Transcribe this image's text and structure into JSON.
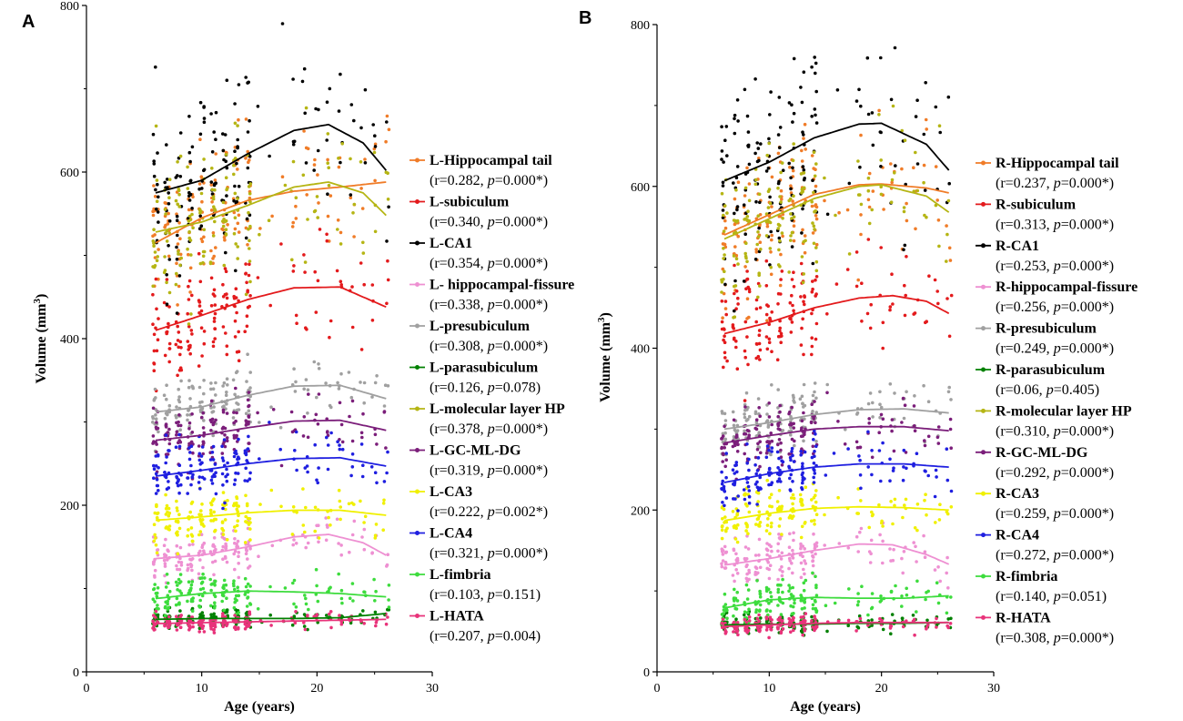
{
  "chart_data": [
    {
      "type": "scatter",
      "panel": "A",
      "xlabel": "Age (years)",
      "ylabel": "Volume (mm",
      "ylabel_sup": "3",
      "ylabel_end": ")",
      "xlim": [
        0,
        30
      ],
      "ylim": [
        0,
        800
      ],
      "xticks": [
        0,
        10,
        20,
        30
      ],
      "yticks": [
        0,
        200,
        400,
        600,
        800
      ],
      "x_range": [
        6,
        26
      ],
      "legend_position": "right",
      "series": [
        {
          "name": "L-Hippocampal tail",
          "color": "#f07c28",
          "stat_pre": "(r=0.282, ",
          "p_label": "p",
          "stat_post": "=0.000*)",
          "fit": [
            [
              6,
              515
            ],
            [
              10,
              545
            ],
            [
              14,
              566
            ],
            [
              18,
              577
            ],
            [
              22,
              582
            ],
            [
              26,
              588
            ]
          ],
          "spread": 75
        },
        {
          "name": "L-subiculum",
          "color": "#e31a1c",
          "stat_pre": "(r=0.340, ",
          "p_label": "p",
          "stat_post": "=0.000*)",
          "fit": [
            [
              6,
              410
            ],
            [
              10,
              428
            ],
            [
              14,
              447
            ],
            [
              18,
              461
            ],
            [
              22,
              462
            ],
            [
              26,
              438
            ]
          ],
          "spread": 55
        },
        {
          "name": "L-CA1",
          "color": "#000000",
          "stat_pre": "(r=0.354, ",
          "p_label": "p",
          "stat_post": "=0.000*)",
          "fit": [
            [
              6,
              575
            ],
            [
              10,
              590
            ],
            [
              14,
              622
            ],
            [
              18,
              650
            ],
            [
              21,
              657
            ],
            [
              24,
              635
            ],
            [
              26,
              602
            ]
          ],
          "spread": 95
        },
        {
          "name": "L- hippocampal-fissure",
          "color": "#ee90d2",
          "stat_pre": "(r=0.338, ",
          "p_label": "p",
          "stat_post": "=0.000*)",
          "fit": [
            [
              6,
              136
            ],
            [
              10,
              140
            ],
            [
              14,
              150
            ],
            [
              18,
              162
            ],
            [
              21,
              165
            ],
            [
              24,
              155
            ],
            [
              26,
              140
            ]
          ],
          "spread": 22
        },
        {
          "name": "L-presubiculum",
          "color": "#a0a0a0",
          "stat_pre": "(r=0.308, ",
          "p_label": "p",
          "stat_post": "=0.000*)",
          "fit": [
            [
              6,
              312
            ],
            [
              10,
              318
            ],
            [
              14,
              332
            ],
            [
              18,
              343
            ],
            [
              22,
              344
            ],
            [
              26,
              328
            ]
          ],
          "spread": 30
        },
        {
          "name": "L-parasubiculum",
          "color": "#008000",
          "stat_pre": "(r=0.126, ",
          "p_label": "p",
          "stat_post": "=0.078)",
          "fit": [
            [
              6,
              63
            ],
            [
              10,
              64
            ],
            [
              14,
              64
            ],
            [
              18,
              64
            ],
            [
              22,
              65
            ],
            [
              26,
              70
            ]
          ],
          "spread": 10
        },
        {
          "name": "L-molecular layer HP",
          "color": "#b5b514",
          "stat_pre": "(r=0.378, ",
          "p_label": "p",
          "stat_post": "=0.000*)",
          "fit": [
            [
              6,
              528
            ],
            [
              10,
              540
            ],
            [
              14,
              560
            ],
            [
              18,
              582
            ],
            [
              21,
              588
            ],
            [
              24,
              575
            ],
            [
              26,
              548
            ]
          ],
          "spread": 75
        },
        {
          "name": "L-GC-ML-DG",
          "color": "#7b1e7a",
          "stat_pre": "(r=0.319, ",
          "p_label": "p",
          "stat_post": "=0.000*)",
          "fit": [
            [
              6,
              278
            ],
            [
              10,
              284
            ],
            [
              14,
              293
            ],
            [
              18,
              301
            ],
            [
              22,
              302
            ],
            [
              26,
              290
            ]
          ],
          "spread": 30
        },
        {
          "name": "L-CA3",
          "color": "#f0f000",
          "stat_pre": "(r=0.222, ",
          "p_label": "p",
          "stat_post": "=0.002*)",
          "fit": [
            [
              6,
              182
            ],
            [
              10,
              186
            ],
            [
              14,
              191
            ],
            [
              18,
              194
            ],
            [
              22,
              194
            ],
            [
              26,
              188
            ]
          ],
          "spread": 25
        },
        {
          "name": "L-CA4",
          "color": "#1f1fe0",
          "stat_pre": "(r=0.321, ",
          "p_label": "p",
          "stat_post": "=0.000*)",
          "fit": [
            [
              6,
              235
            ],
            [
              10,
              242
            ],
            [
              14,
              250
            ],
            [
              18,
              256
            ],
            [
              22,
              257
            ],
            [
              26,
              247
            ]
          ],
          "spread": 28
        },
        {
          "name": "L-fimbria",
          "color": "#3ddc3d",
          "stat_pre": "(r=0.103, ",
          "p_label": "p",
          "stat_post": "=0.151)",
          "fit": [
            [
              6,
              88
            ],
            [
              10,
              94
            ],
            [
              14,
              97
            ],
            [
              18,
              96
            ],
            [
              22,
              94
            ],
            [
              26,
              90
            ]
          ],
          "spread": 20
        },
        {
          "name": "L-HATA",
          "color": "#e8337a",
          "stat_pre": "(r=0.207, ",
          "p_label": "p",
          "stat_post": "=0.004)",
          "fit": [
            [
              6,
              58
            ],
            [
              10,
              59
            ],
            [
              14,
              60
            ],
            [
              18,
              61
            ],
            [
              22,
              62
            ],
            [
              26,
              63
            ]
          ],
          "spread": 9
        }
      ]
    },
    {
      "type": "scatter",
      "panel": "B",
      "xlabel": "Age (years)",
      "ylabel": "Volume (mm",
      "ylabel_sup": "3",
      "ylabel_end": ")",
      "xlim": [
        0,
        30
      ],
      "ylim": [
        0,
        800
      ],
      "xticks": [
        0,
        10,
        20,
        30
      ],
      "yticks": [
        0,
        200,
        400,
        600,
        800
      ],
      "x_range": [
        6,
        26
      ],
      "legend_position": "right",
      "series": [
        {
          "name": "R-Hippocampal tail",
          "color": "#f07c28",
          "stat_pre": "(r=0.237, ",
          "p_label": "p",
          "stat_post": "=0.000*)",
          "fit": [
            [
              6,
              540
            ],
            [
              10,
              565
            ],
            [
              14,
              590
            ],
            [
              18,
              602
            ],
            [
              20,
              603
            ],
            [
              24,
              598
            ],
            [
              26,
              592
            ]
          ],
          "spread": 75
        },
        {
          "name": "R-subiculum",
          "color": "#e31a1c",
          "stat_pre": "(r=0.313, ",
          "p_label": "p",
          "stat_post": "=0.000*)",
          "fit": [
            [
              6,
              418
            ],
            [
              10,
              432
            ],
            [
              14,
              450
            ],
            [
              18,
              462
            ],
            [
              21,
              465
            ],
            [
              24,
              458
            ],
            [
              26,
              443
            ]
          ],
          "spread": 55
        },
        {
          "name": "R-CA1",
          "color": "#000000",
          "stat_pre": "(r=0.253, ",
          "p_label": "p",
          "stat_post": "=0.000*)",
          "fit": [
            [
              6,
              607
            ],
            [
              10,
              630
            ],
            [
              14,
              660
            ],
            [
              18,
              677
            ],
            [
              20,
              678
            ],
            [
              24,
              652
            ],
            [
              26,
              620
            ]
          ],
          "spread": 95
        },
        {
          "name": "R-hippocampal-fissure",
          "color": "#ee90d2",
          "stat_pre": "(r=0.256, ",
          "p_label": "p",
          "stat_post": "=0.000*)",
          "fit": [
            [
              6,
              132
            ],
            [
              10,
              140
            ],
            [
              14,
              150
            ],
            [
              18,
              158
            ],
            [
              21,
              157
            ],
            [
              24,
              145
            ],
            [
              26,
              133
            ]
          ],
          "spread": 22
        },
        {
          "name": "R-presubiculum",
          "color": "#a0a0a0",
          "stat_pre": "(r=0.249, ",
          "p_label": "p",
          "stat_post": "=0.000*)",
          "fit": [
            [
              6,
              300
            ],
            [
              10,
              308
            ],
            [
              14,
              318
            ],
            [
              18,
              324
            ],
            [
              22,
              325
            ],
            [
              26,
              320
            ]
          ],
          "spread": 30
        },
        {
          "name": "R-parasubiculum",
          "color": "#008000",
          "stat_pre": "(r=0.06, ",
          "p_label": "p",
          "stat_post": "=0.405)",
          "fit": [
            [
              6,
              58
            ],
            [
              10,
              59
            ],
            [
              14,
              59
            ],
            [
              18,
              60
            ],
            [
              22,
              60
            ],
            [
              26,
              61
            ]
          ],
          "spread": 10
        },
        {
          "name": "R-molecular layer HP",
          "color": "#b5b514",
          "stat_pre": "(r=0.310, ",
          "p_label": "p",
          "stat_post": "=0.000*)",
          "fit": [
            [
              6,
              535
            ],
            [
              10,
              560
            ],
            [
              14,
              585
            ],
            [
              18,
              600
            ],
            [
              20,
              602
            ],
            [
              24,
              588
            ],
            [
              26,
              568
            ]
          ],
          "spread": 75
        },
        {
          "name": "R-GC-ML-DG",
          "color": "#7b1e7a",
          "stat_pre": "(r=0.292, ",
          "p_label": "p",
          "stat_post": "=0.000*)",
          "fit": [
            [
              6,
              283
            ],
            [
              10,
              292
            ],
            [
              14,
              300
            ],
            [
              18,
              303
            ],
            [
              22,
              303
            ],
            [
              26,
              298
            ]
          ],
          "spread": 30
        },
        {
          "name": "R-CA3",
          "color": "#f0f000",
          "stat_pre": "(r=0.259, ",
          "p_label": "p",
          "stat_post": "=0.000*)",
          "fit": [
            [
              6,
              187
            ],
            [
              10,
              196
            ],
            [
              14,
              202
            ],
            [
              18,
              204
            ],
            [
              22,
              203
            ],
            [
              26,
              200
            ]
          ],
          "spread": 25
        },
        {
          "name": "R-CA4",
          "color": "#1f1fe0",
          "stat_pre": "(r=0.272, ",
          "p_label": "p",
          "stat_post": "=0.000*)",
          "fit": [
            [
              6,
              234
            ],
            [
              10,
              245
            ],
            [
              14,
              253
            ],
            [
              18,
              257
            ],
            [
              22,
              257
            ],
            [
              26,
              253
            ]
          ],
          "spread": 28
        },
        {
          "name": "R-fimbria",
          "color": "#3ddc3d",
          "stat_pre": "(r=0.140, ",
          "p_label": "p",
          "stat_post": "=0.051)",
          "fit": [
            [
              6,
              79
            ],
            [
              10,
              89
            ],
            [
              14,
              92
            ],
            [
              18,
              91
            ],
            [
              22,
              91
            ],
            [
              26,
              94
            ]
          ],
          "spread": 20
        },
        {
          "name": "R-HATA",
          "color": "#e8337a",
          "stat_pre": "(r=0.308, ",
          "p_label": "p",
          "stat_post": "=0.000*)",
          "fit": [
            [
              6,
              56
            ],
            [
              10,
              58
            ],
            [
              14,
              60
            ],
            [
              18,
              61
            ],
            [
              22,
              61
            ],
            [
              26,
              61
            ]
          ],
          "spread": 9
        }
      ]
    }
  ]
}
